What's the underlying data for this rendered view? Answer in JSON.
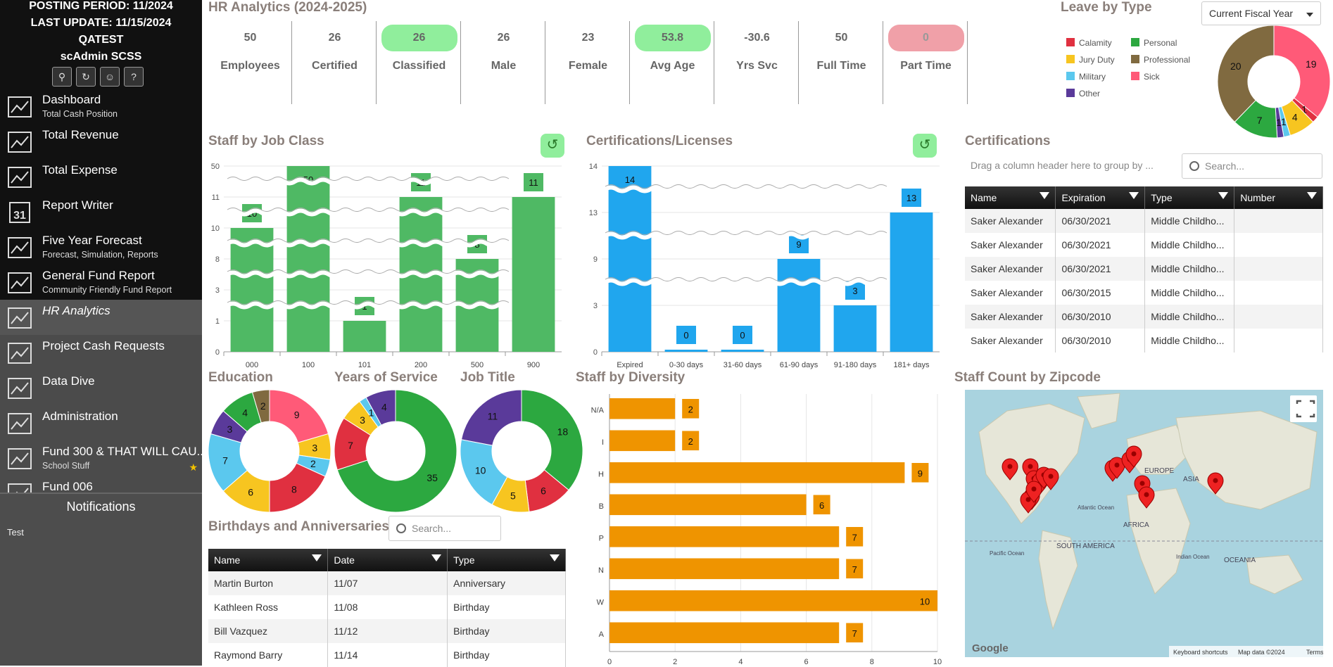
{
  "sidebar": {
    "posting_period": "POSTING PERIOD: 11/2024",
    "last_update": "LAST UPDATE: 11/15/2024",
    "env": "QATEST",
    "user": "scAdmin SCSS",
    "nav": [
      {
        "label": "Dashboard",
        "sub": "Total Cash Position",
        "icon": "dashboard-icon"
      },
      {
        "label": "Total Revenue",
        "sub": "",
        "icon": "revenue-chart-icon"
      },
      {
        "label": "Total Expense",
        "sub": "",
        "icon": "expense-box-icon"
      },
      {
        "label": "Report Writer",
        "sub": "",
        "icon": "calendar-icon",
        "icon_text": "31"
      },
      {
        "label": "Five Year Forecast",
        "sub": "Forecast, Simulation, Reports",
        "icon": "forecast-icon"
      },
      {
        "label": "General Fund Report",
        "sub": "Community Friendly Fund Report",
        "icon": "fund-report-icon"
      },
      {
        "label": "HR Analytics",
        "sub": "",
        "icon": "people-icon"
      },
      {
        "label": "Project Cash Requests",
        "sub": "",
        "icon": "worker-icon"
      },
      {
        "label": "Data Dive",
        "sub": "",
        "icon": "database-search-icon"
      },
      {
        "label": "Administration",
        "sub": "",
        "icon": "admin-gear-icon"
      },
      {
        "label": "Fund 300 & THAT WILL CAU...",
        "sub": "School Stuff",
        "icon": "dollar-icon"
      },
      {
        "label": "Fund 006",
        "sub": "",
        "icon": "bar-chart-icon"
      }
    ],
    "notifications_title": "Notifications",
    "notification_text": "Test"
  },
  "page_title": "HR Analytics (2024-2025)",
  "kpis": [
    {
      "value": "50",
      "label": "Employees",
      "hl": ""
    },
    {
      "value": "26",
      "label": "Certified",
      "hl": ""
    },
    {
      "value": "26",
      "label": "Classified",
      "hl": "green"
    },
    {
      "value": "26",
      "label": "Male",
      "hl": ""
    },
    {
      "value": "23",
      "label": "Female",
      "hl": ""
    },
    {
      "value": "53.8",
      "label": "Avg Age",
      "hl": "green"
    },
    {
      "value": "-30.6",
      "label": "Yrs Svc",
      "hl": ""
    },
    {
      "value": "50",
      "label": "Full Time",
      "hl": ""
    },
    {
      "value": "0",
      "label": "Part Time",
      "hl": "red"
    }
  ],
  "leave": {
    "title": "Leave by Type",
    "dropdown": "Current Fiscal Year"
  },
  "staff_job_title": "Staff by Job Class",
  "cert_licenses_title": "Certifications/Licenses",
  "certifications": {
    "title": "Certifications",
    "group_hint": "Drag a column header here to group by ...",
    "search_placeholder": "Search...",
    "columns": [
      "Name",
      "Expiration",
      "Type",
      "Number"
    ],
    "rows": [
      [
        "Saker Alexander",
        "06/30/2021",
        "Middle Childho...",
        ""
      ],
      [
        "Saker Alexander",
        "06/30/2021",
        "Middle Childho...",
        ""
      ],
      [
        "Saker Alexander",
        "06/30/2021",
        "Middle Childho...",
        ""
      ],
      [
        "Saker Alexander",
        "06/30/2015",
        "Middle Childho...",
        ""
      ],
      [
        "Saker Alexander",
        "06/30/2010",
        "Middle Childho...",
        ""
      ],
      [
        "Saker Alexander",
        "06/30/2010",
        "Middle Childho...",
        ""
      ]
    ]
  },
  "edu_title": "Education",
  "yos_title": "Years of Service",
  "jobtitle_title": "Job Title",
  "diversity_title": "Staff by Diversity",
  "zip_title": "Staff Count by Zipcode",
  "map": {
    "labels": [
      "ASIA",
      "AFRICA",
      "OCEANIA",
      "SOUTH AMERICA",
      "EUROPE",
      "Atlantic Ocean",
      "Pacific Ocean",
      "Indian Ocean"
    ],
    "google": "Google",
    "footer": [
      "Keyboard shortcuts",
      "Map data ©2024",
      "Terms"
    ]
  },
  "birthdays": {
    "title": "Birthdays and Anniversaries",
    "search_placeholder": "Search...",
    "columns": [
      "Name",
      "Date",
      "Type"
    ],
    "rows": [
      [
        "Martin Burton",
        "11/07",
        "Anniversary"
      ],
      [
        "Kathleen Ross",
        "11/08",
        "Birthday"
      ],
      [
        "Bill Vazquez",
        "11/12",
        "Birthday"
      ],
      [
        "Raymond Barry",
        "11/14",
        "Birthday"
      ]
    ]
  },
  "chart_data": [
    {
      "id": "staff_job_class",
      "type": "bar",
      "title": "Staff by Job Class",
      "categories": [
        "000",
        "100",
        "101",
        "200",
        "500",
        "900"
      ],
      "values": [
        10,
        50,
        1,
        11,
        8,
        11
      ],
      "yticks": [
        "0",
        "1",
        "3",
        "8",
        "10",
        "11",
        "50"
      ],
      "color": "#4fb964",
      "broken_axis": true
    },
    {
      "id": "cert_licenses",
      "type": "bar",
      "title": "Certifications/Licenses",
      "categories": [
        "Expired",
        "0-30 days",
        "31-60 days",
        "61-90 days",
        "91-180 days",
        "181+ days"
      ],
      "values": [
        14,
        0,
        0,
        9,
        3,
        13
      ],
      "yticks": [
        "0",
        "3",
        "9",
        "13",
        "14"
      ],
      "color": "#20a6ee",
      "broken_axis": true
    },
    {
      "id": "leave_by_type",
      "type": "pie",
      "title": "Leave by Type",
      "legend": [
        {
          "name": "Calamity",
          "color": "#e03040"
        },
        {
          "name": "Personal",
          "color": "#2ca840"
        },
        {
          "name": "Jury Duty",
          "color": "#f7c520"
        },
        {
          "name": "Professional",
          "color": "#806a40"
        },
        {
          "name": "Military",
          "color": "#5bc8ee"
        },
        {
          "name": "Sick",
          "color": "#ff5a78"
        },
        {
          "name": "Other",
          "color": "#5a3a9a"
        }
      ],
      "slices": [
        {
          "name": "Sick",
          "value": 19,
          "color": "#ff5a78"
        },
        {
          "name": "Calamity",
          "value": 1,
          "color": "#e03040"
        },
        {
          "name": "Jury Duty",
          "value": 4,
          "color": "#f7c520"
        },
        {
          "name": "Military",
          "value": 1,
          "color": "#5bc8ee"
        },
        {
          "name": "Other",
          "value": 1,
          "color": "#5a3a9a"
        },
        {
          "name": "Personal",
          "value": 7,
          "color": "#2ca840"
        },
        {
          "name": "Professional",
          "value": 20,
          "color": "#806a40"
        }
      ]
    },
    {
      "id": "education",
      "type": "pie",
      "title": "Education",
      "slices": [
        {
          "value": 9,
          "color": "#ff5a78"
        },
        {
          "value": 3,
          "color": "#f7c520"
        },
        {
          "value": 2,
          "color": "#5bc8ee"
        },
        {
          "value": 8,
          "color": "#e03040"
        },
        {
          "value": 6,
          "color": "#f7c520"
        },
        {
          "value": 7,
          "color": "#5bc8ee"
        },
        {
          "value": 3,
          "color": "#5a3a9a"
        },
        {
          "value": 4,
          "color": "#2ca840"
        },
        {
          "value": 2,
          "color": "#806a40"
        }
      ]
    },
    {
      "id": "years_of_service",
      "type": "pie",
      "title": "Years of Service",
      "slices": [
        {
          "value": 35,
          "color": "#2ca840"
        },
        {
          "value": 7,
          "color": "#e03040"
        },
        {
          "value": 3,
          "color": "#f7c520"
        },
        {
          "value": 1,
          "color": "#5bc8ee"
        },
        {
          "value": 4,
          "color": "#5a3a9a"
        }
      ]
    },
    {
      "id": "job_title",
      "type": "pie",
      "title": "Job Title",
      "slices": [
        {
          "value": 18,
          "color": "#2ca840"
        },
        {
          "value": 6,
          "color": "#e03040"
        },
        {
          "value": 5,
          "color": "#f7c520"
        },
        {
          "value": 10,
          "color": "#5bc8ee"
        },
        {
          "value": 11,
          "color": "#5a3a9a"
        }
      ]
    },
    {
      "id": "diversity",
      "type": "hbar",
      "title": "Staff by Diversity",
      "categories": [
        "N/A",
        "I",
        "H",
        "B",
        "P",
        "N",
        "W",
        "A"
      ],
      "values": [
        2,
        2,
        9,
        6,
        7,
        7,
        10,
        7
      ],
      "xlim": [
        0,
        10
      ],
      "xticks": [
        0,
        2,
        4,
        6,
        8,
        10
      ],
      "color": "#ef9400"
    }
  ]
}
